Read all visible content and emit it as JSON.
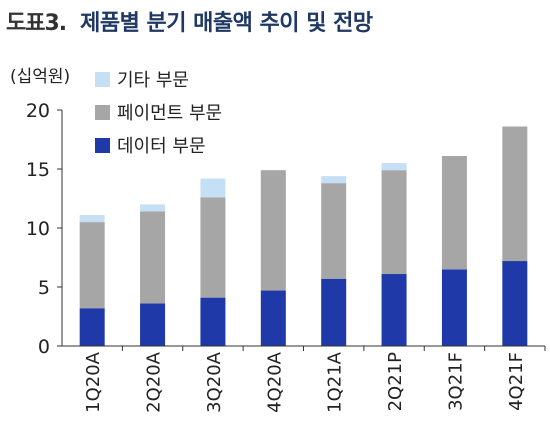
{
  "figure_label": "도표3.",
  "title": "제품별 분기 매출액 추이 및 전망",
  "colors": {
    "기타": "#c5e0f5",
    "페이먼트": "#a6a6a6",
    "데이터": "#1f3aa8"
  },
  "chart_data": {
    "type": "bar",
    "stacked": true,
    "unit_label": "(십억원)",
    "categories": [
      "1Q20A",
      "2Q20A",
      "3Q20A",
      "4Q20A",
      "1Q21A",
      "2Q21P",
      "3Q21F",
      "4Q21F"
    ],
    "series": [
      {
        "name": "데이터 부문",
        "values": [
          3.2,
          3.6,
          4.1,
          4.7,
          5.7,
          6.1,
          6.5,
          7.2
        ]
      },
      {
        "name": "페이먼트 부문",
        "values": [
          7.3,
          7.8,
          8.5,
          10.2,
          8.1,
          8.8,
          9.6,
          11.4
        ]
      },
      {
        "name": "기타 부문",
        "values": [
          0.6,
          0.6,
          1.6,
          0.0,
          0.6,
          0.6,
          0.0,
          0.0
        ]
      }
    ],
    "ylim": [
      0,
      20
    ],
    "yticks": [
      0,
      5,
      10,
      15,
      20
    ],
    "legend_position": "top-left",
    "grid": false
  }
}
